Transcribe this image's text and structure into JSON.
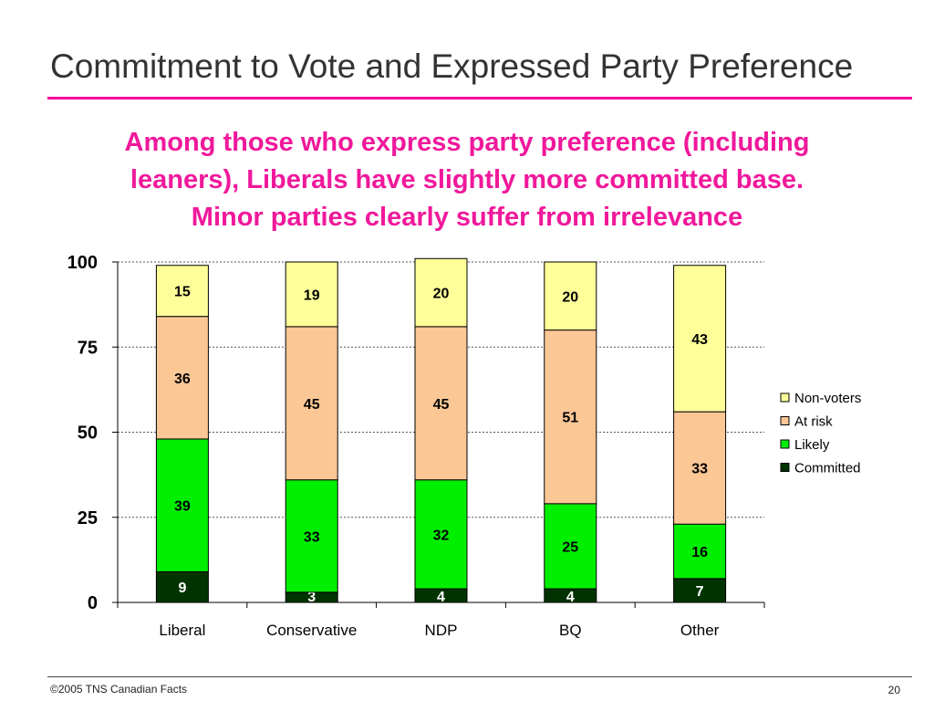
{
  "slide": {
    "title": "Commitment to Vote and Expressed Party Preference",
    "headline_lines": [
      "Among those who express party preference (including",
      "leaners), Liberals have slightly more committed base.",
      "Minor parties clearly suffer from irrelevance"
    ],
    "footer_copyright": "©2005 TNS Canadian Facts",
    "page_number": "20"
  },
  "colors": {
    "accent": "#ff00a0",
    "headline": "#f0189b",
    "committed": "#003300",
    "likely": "#00ee00",
    "at_risk": "#fbc795",
    "non_voters": "#ffff99",
    "committed_label": "#ffffff",
    "other_label": "#000000"
  },
  "chart_data": {
    "type": "bar",
    "stacked": true,
    "categories": [
      "Liberal",
      "Conservative",
      "NDP",
      "BQ",
      "Other"
    ],
    "series": [
      {
        "name": "Committed",
        "color": "#003300",
        "values": [
          9,
          3,
          4,
          4,
          7
        ]
      },
      {
        "name": "Likely",
        "color": "#00ee00",
        "values": [
          39,
          33,
          32,
          25,
          16
        ]
      },
      {
        "name": "At risk",
        "color": "#fbc795",
        "values": [
          36,
          45,
          45,
          51,
          33
        ]
      },
      {
        "name": "Non-voters",
        "color": "#ffff99",
        "values": [
          15,
          19,
          20,
          20,
          43
        ]
      }
    ],
    "ylim": [
      0,
      100
    ],
    "yticks": [
      0,
      25,
      50,
      75,
      100
    ],
    "ytick_labels": [
      "0",
      "25",
      "50",
      "75",
      "100"
    ],
    "grid": "dotted horizontal",
    "legend_position": "right",
    "legend_order": [
      "Non-voters",
      "At risk",
      "Likely",
      "Committed"
    ]
  }
}
